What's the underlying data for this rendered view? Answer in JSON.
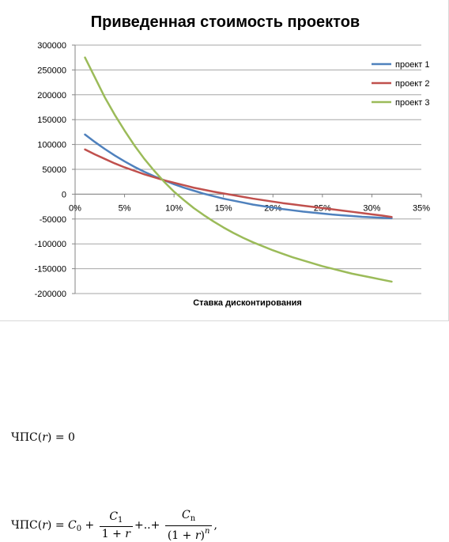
{
  "chart_data": {
    "type": "line",
    "title": "Приведенная стоимость проектов",
    "xlabel": "Ставка дисконтирования",
    "ylabel": "",
    "x": [
      0.01,
      0.02,
      0.03,
      0.04,
      0.05,
      0.06,
      0.07,
      0.08,
      0.09,
      0.1,
      0.11,
      0.12,
      0.13,
      0.14,
      0.15,
      0.16,
      0.17,
      0.18,
      0.19,
      0.2,
      0.21,
      0.22,
      0.23,
      0.24,
      0.25,
      0.26,
      0.27,
      0.28,
      0.29,
      0.3,
      0.31,
      0.32
    ],
    "xlim": [
      0,
      0.35
    ],
    "xticks": [
      0,
      0.05,
      0.1,
      0.15,
      0.2,
      0.25,
      0.3,
      0.35
    ],
    "xtick_labels": [
      "0%",
      "5%",
      "10%",
      "15%",
      "20%",
      "25%",
      "30%",
      "35%"
    ],
    "ylim": [
      -200000,
      300000
    ],
    "yticks": [
      -200000,
      -150000,
      -100000,
      -50000,
      0,
      50000,
      100000,
      150000,
      200000,
      250000,
      300000
    ],
    "ytick_labels": [
      "-200000",
      "-150000",
      "-100000",
      "-50000",
      "0",
      "50000",
      "100000",
      "150000",
      "200000",
      "250000",
      "300000"
    ],
    "grid": "horizontal",
    "legend": "right",
    "series": [
      {
        "name": "проект 1",
        "color": "#4f81bd",
        "values": [
          120000,
          105000,
          91000,
          78000,
          66000,
          55000,
          45000,
          36000,
          28000,
          20000,
          13000,
          7000,
          1000,
          -4000,
          -9000,
          -13000,
          -17000,
          -21000,
          -24000,
          -27000,
          -30000,
          -32500,
          -35000,
          -37000,
          -39000,
          -41000,
          -42500,
          -44000,
          -45500,
          -46500,
          -47500,
          -48500
        ]
      },
      {
        "name": "проект 2",
        "color": "#c0504d",
        "values": [
          90000,
          80000,
          71000,
          62000,
          54000,
          47000,
          40000,
          34000,
          28000,
          23000,
          18000,
          13000,
          9000,
          5000,
          1500,
          -2000,
          -5500,
          -9000,
          -12000,
          -15000,
          -18000,
          -20500,
          -23000,
          -25500,
          -28000,
          -30500,
          -33000,
          -35500,
          -38000,
          -40500,
          -43000,
          -46000
        ]
      },
      {
        "name": "проект 3",
        "color": "#9bbb59",
        "values": [
          275000,
          235000,
          195000,
          160000,
          128000,
          98000,
          71000,
          47000,
          25000,
          5000,
          -12000,
          -28000,
          -42000,
          -55000,
          -67000,
          -78000,
          -88000,
          -97000,
          -105000,
          -113000,
          -120000,
          -127000,
          -133000,
          -139000,
          -145000,
          -150000,
          -155000,
          -160000,
          -164000,
          -168000,
          -172000,
          -176000
        ]
      }
    ]
  },
  "formulas": {
    "equation1": {
      "lhs": "ЧПС",
      "var": "r",
      "rhs": "0"
    },
    "equation2": {
      "lhs": "ЧПС",
      "var": "r",
      "c0_base": "C",
      "c0_sub": "0",
      "c1_base": "C",
      "c1_sub": "1",
      "cn_base": "C",
      "cn_sub": "n",
      "denom1": "1 + ",
      "denom1_var": "r",
      "dots": "+..+",
      "denomn": "(1 + ",
      "denomn_var": "r",
      "denomn_close": ")",
      "exp": "n",
      "trail": ","
    }
  }
}
